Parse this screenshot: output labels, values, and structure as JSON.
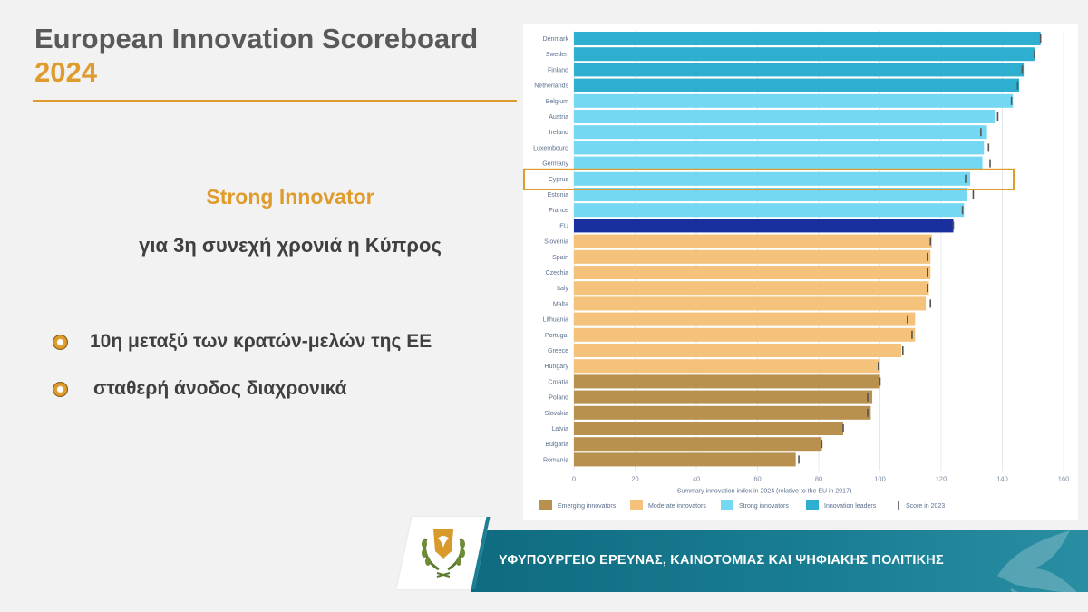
{
  "header": {
    "title": "European Innovation Scoreboard",
    "year": "2024"
  },
  "main": {
    "status": "Strong Innovator",
    "subtitle": "για 3η συνεχή χρονιά η Κύπρος",
    "bullets": [
      "10η μεταξύ των κρατών-μελών της ΕΕ",
      "σταθερή άνοδος διαχρονικά"
    ]
  },
  "footer": {
    "ministry": "ΥΦΥΠΟΥΡΓΕΙΟ ΕΡΕΥΝΑΣ, ΚΑΙΝΟΤΟΜΙΑΣ ΚΑΙ ΨΗΦΙΑΚΗΣ ΠΟΛΙΤΙΚΗΣ"
  },
  "colors": {
    "accent": "#e09b2d",
    "emerging": "#b8914f",
    "moderate": "#f4c27a",
    "strong": "#74d8f2",
    "leader": "#2fafd0",
    "eu": "#1a2f9e",
    "highlight": "#e09b2d"
  },
  "chart_data": {
    "type": "bar",
    "orientation": "horizontal",
    "xlabel": "Summary innovation index in 2024 (relative to the EU in 2017)",
    "xlim": [
      0,
      160
    ],
    "xticks": [
      0,
      20,
      40,
      60,
      80,
      100,
      120,
      140,
      160
    ],
    "grid": true,
    "highlighted": "Cyprus",
    "categories": [
      "Denmark",
      "Sweden",
      "Finland",
      "Netherlands",
      "Belgium",
      "Austria",
      "Ireland",
      "Luxembourg",
      "Germany",
      "Cyprus",
      "Estonia",
      "France",
      "EU",
      "Slovenia",
      "Spain",
      "Czechia",
      "Italy",
      "Malta",
      "Lithuania",
      "Portugal",
      "Greece",
      "Hungary",
      "Croatia",
      "Poland",
      "Slovakia",
      "Latvia",
      "Bulgaria",
      "Romania"
    ],
    "values": [
      152.5,
      150.5,
      147,
      145.5,
      143.5,
      137.5,
      135,
      134,
      133.5,
      129.5,
      128.5,
      127.5,
      124,
      117,
      116.5,
      116.5,
      116,
      115,
      111.5,
      111.5,
      107,
      100,
      100,
      97.5,
      97,
      88,
      81,
      72.5
    ],
    "score_2023": [
      152.5,
      150.5,
      146.5,
      145,
      143,
      138.5,
      133,
      135.5,
      136,
      128,
      130.5,
      127,
      124,
      116.5,
      115.5,
      115.5,
      115.5,
      116.5,
      109,
      110.5,
      107.5,
      99.5,
      100,
      96,
      96,
      88,
      81,
      73.5
    ],
    "groups": [
      "leader",
      "leader",
      "leader",
      "leader",
      "strong",
      "strong",
      "strong",
      "strong",
      "strong",
      "strong",
      "strong",
      "strong",
      "eu",
      "moderate",
      "moderate",
      "moderate",
      "moderate",
      "moderate",
      "moderate",
      "moderate",
      "moderate",
      "moderate",
      "emerging",
      "emerging",
      "emerging",
      "emerging",
      "emerging",
      "emerging"
    ],
    "legend": [
      {
        "key": "emerging",
        "label": "Emerging innovators"
      },
      {
        "key": "moderate",
        "label": "Moderate innovators"
      },
      {
        "key": "strong",
        "label": "Strong innovators"
      },
      {
        "key": "leader",
        "label": "Innovation leaders"
      },
      {
        "key": "score2023",
        "label": "Score in 2023"
      }
    ],
    "legend_position": "bottom"
  }
}
